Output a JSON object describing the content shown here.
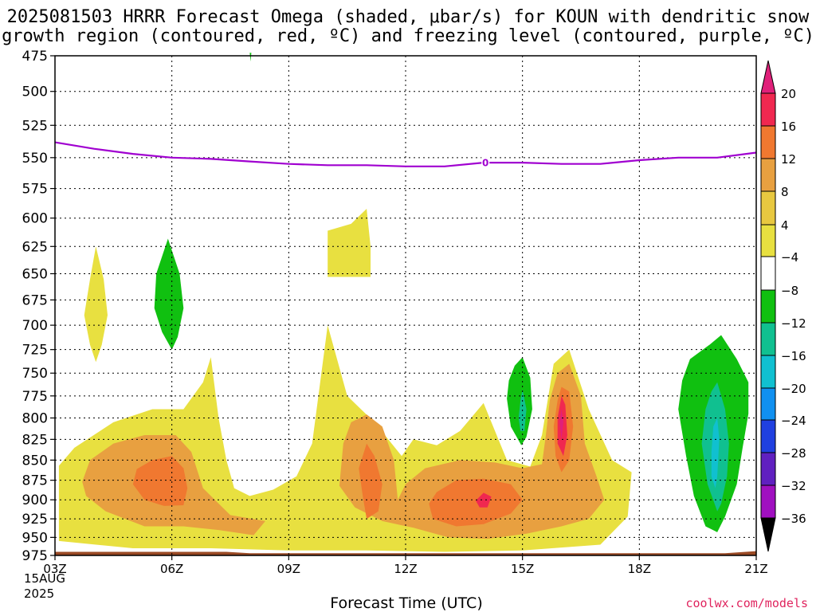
{
  "title": {
    "line1": "2025081503 HRRR Forecast Omega (shaded, μbar/s) for KOUN with dendritic snow",
    "line2": "growth region (contoured, red, ºC) and freezing level (contoured, purple, ºC)"
  },
  "start_date": {
    "line1": "15AUG",
    "line2": "2025"
  },
  "credit": "coolwx.com/models",
  "chart_data": {
    "type": "heatmap",
    "xlabel": "Forecast Time (UTC)",
    "ylabel": "",
    "x_ticks": [
      "03Z",
      "06Z",
      "09Z",
      "12Z",
      "15Z",
      "18Z",
      "21Z"
    ],
    "x_range": [
      3,
      21
    ],
    "y_ticks": [
      475,
      500,
      525,
      550,
      575,
      600,
      625,
      650,
      675,
      700,
      725,
      750,
      775,
      800,
      825,
      850,
      875,
      900,
      925,
      950,
      975
    ],
    "y_range_hPa": [
      475,
      975
    ],
    "grid": true,
    "colorbar": {
      "labels": [
        "20",
        "16",
        "12",
        "8",
        "4",
        "−4",
        "−8",
        "−12",
        "−16",
        "−20",
        "−24",
        "−28",
        "−32",
        "−36"
      ],
      "colors": [
        "#f02850",
        "#f07830",
        "#e8a040",
        "#e8c840",
        "#e8e040",
        "#ffffff",
        "#10c010",
        "#10c090",
        "#10c0d0",
        "#1090f0",
        "#2040e0",
        "#6020c0",
        "#a010c0",
        "#a0a0a0"
      ],
      "top_arrow_color": "#e0207a",
      "bottom_arrow_color": "#000000"
    },
    "freezing_level": {
      "label": "0",
      "color": "#a000d0",
      "points_time_hPa": [
        [
          3,
          538
        ],
        [
          4,
          543
        ],
        [
          5,
          547
        ],
        [
          6,
          550
        ],
        [
          7,
          551
        ],
        [
          8,
          553
        ],
        [
          9,
          555
        ],
        [
          10,
          556
        ],
        [
          11,
          556
        ],
        [
          12,
          557
        ],
        [
          13,
          557
        ],
        [
          14,
          554
        ],
        [
          15,
          554
        ],
        [
          16,
          555
        ],
        [
          17,
          555
        ],
        [
          18,
          552
        ],
        [
          19,
          550
        ],
        [
          20,
          550
        ],
        [
          21,
          546
        ]
      ]
    },
    "omega_regions": [
      {
        "value_range": "4 to 8",
        "color": "#e8e040",
        "points_time_hPa": [
          [
            3.1,
            857
          ],
          [
            3.5,
            835
          ],
          [
            4.5,
            805
          ],
          [
            5.5,
            790
          ],
          [
            6.3,
            790
          ],
          [
            6.8,
            760
          ],
          [
            7.0,
            733
          ],
          [
            7.2,
            800
          ],
          [
            7.4,
            850
          ],
          [
            7.6,
            885
          ],
          [
            8.0,
            895
          ],
          [
            8.6,
            887
          ],
          [
            9.2,
            870
          ],
          [
            9.6,
            830
          ],
          [
            10.0,
            700
          ],
          [
            10.5,
            775
          ],
          [
            11.2,
            805
          ],
          [
            11.9,
            845
          ],
          [
            12.2,
            825
          ],
          [
            12.8,
            832
          ],
          [
            13.4,
            815
          ],
          [
            14.0,
            783
          ],
          [
            14.6,
            850
          ],
          [
            15.2,
            858
          ],
          [
            15.5,
            820
          ],
          [
            15.8,
            740
          ],
          [
            16.2,
            725
          ],
          [
            16.7,
            790
          ],
          [
            17.3,
            850
          ],
          [
            17.8,
            865
          ],
          [
            17.7,
            922
          ],
          [
            17.0,
            960
          ],
          [
            15.0,
            968
          ],
          [
            13.0,
            970
          ],
          [
            11.0,
            968
          ],
          [
            9.0,
            968
          ],
          [
            7.0,
            965
          ],
          [
            5.0,
            965
          ],
          [
            3.1,
            955
          ]
        ]
      },
      {
        "value_range": "4 to 8",
        "color": "#e8e040",
        "points_time_hPa": [
          [
            3.9,
            720
          ],
          [
            3.75,
            690
          ],
          [
            3.9,
            655
          ],
          [
            4.05,
            625
          ],
          [
            4.25,
            655
          ],
          [
            4.35,
            690
          ],
          [
            4.2,
            720
          ],
          [
            4.05,
            738
          ]
        ]
      },
      {
        "value_range": "4 to 8",
        "color": "#e8e040",
        "points_time_hPa": [
          [
            10.0,
            611
          ],
          [
            10.6,
            605
          ],
          [
            11.0,
            592
          ],
          [
            11.1,
            625
          ],
          [
            11.1,
            653
          ],
          [
            10.0,
            653
          ]
        ]
      },
      {
        "value_range": "8 to 12",
        "color": "#e8a040",
        "points_time_hPa": [
          [
            3.7,
            877
          ],
          [
            3.9,
            850
          ],
          [
            4.5,
            830
          ],
          [
            5.3,
            820
          ],
          [
            6.1,
            820
          ],
          [
            6.5,
            840
          ],
          [
            6.8,
            885
          ],
          [
            7.5,
            920
          ],
          [
            8.4,
            928
          ],
          [
            8.1,
            947
          ],
          [
            7.2,
            940
          ],
          [
            6.3,
            935
          ],
          [
            5.3,
            935
          ],
          [
            4.3,
            915
          ],
          [
            3.8,
            895
          ]
        ]
      },
      {
        "value_range": "8 to 12",
        "color": "#e8a040",
        "points_time_hPa": [
          [
            10.3,
            882
          ],
          [
            10.4,
            830
          ],
          [
            10.6,
            805
          ],
          [
            11.0,
            796
          ],
          [
            11.4,
            810
          ],
          [
            11.7,
            850
          ],
          [
            11.8,
            900
          ],
          [
            12.0,
            880
          ],
          [
            12.5,
            860
          ],
          [
            13.4,
            850
          ],
          [
            14.3,
            853
          ],
          [
            15.0,
            860
          ],
          [
            15.5,
            855
          ],
          [
            15.6,
            820
          ],
          [
            15.7,
            780
          ],
          [
            15.9,
            750
          ],
          [
            16.2,
            740
          ],
          [
            16.5,
            775
          ],
          [
            16.6,
            830
          ],
          [
            16.9,
            870
          ],
          [
            17.1,
            900
          ],
          [
            16.7,
            925
          ],
          [
            16.0,
            935
          ],
          [
            15.1,
            945
          ],
          [
            14.1,
            952
          ],
          [
            13.1,
            950
          ],
          [
            12.2,
            937
          ],
          [
            11.4,
            928
          ],
          [
            10.7,
            910
          ]
        ]
      },
      {
        "value_range": "12 to 16",
        "color": "#f07830",
        "points_time_hPa": [
          [
            5.1,
            861
          ],
          [
            5.5,
            850
          ],
          [
            6.0,
            845
          ],
          [
            6.3,
            860
          ],
          [
            6.4,
            885
          ],
          [
            6.3,
            907
          ],
          [
            5.8,
            908
          ],
          [
            5.3,
            900
          ],
          [
            5.0,
            880
          ]
        ]
      },
      {
        "value_range": "12 to 16",
        "color": "#f07830",
        "points_time_hPa": [
          [
            10.8,
            860
          ],
          [
            11.0,
            830
          ],
          [
            11.2,
            845
          ],
          [
            11.4,
            880
          ],
          [
            11.3,
            915
          ],
          [
            11.0,
            925
          ],
          [
            10.9,
            895
          ]
        ]
      },
      {
        "value_range": "12 to 16",
        "color": "#f07830",
        "points_time_hPa": [
          [
            12.8,
            890
          ],
          [
            13.3,
            875
          ],
          [
            14.0,
            873
          ],
          [
            14.7,
            880
          ],
          [
            15.0,
            900
          ],
          [
            14.7,
            918
          ],
          [
            14.0,
            932
          ],
          [
            13.3,
            935
          ],
          [
            12.7,
            925
          ],
          [
            12.6,
            905
          ]
        ]
      },
      {
        "value_range": "12 to 16",
        "color": "#f07830",
        "points_time_hPa": [
          [
            15.8,
            810
          ],
          [
            15.9,
            780
          ],
          [
            16.0,
            765
          ],
          [
            16.2,
            770
          ],
          [
            16.3,
            810
          ],
          [
            16.2,
            850
          ],
          [
            16.0,
            865
          ],
          [
            15.85,
            845
          ]
        ]
      },
      {
        "value_range": "16 to 20",
        "color": "#f02850",
        "points_time_hPa": [
          [
            13.8,
            901
          ],
          [
            14.0,
            891
          ],
          [
            14.2,
            896
          ],
          [
            14.1,
            910
          ],
          [
            13.9,
            910
          ]
        ]
      },
      {
        "value_range": "16 to 20",
        "color": "#f02850",
        "points_time_hPa": [
          [
            15.9,
            800
          ],
          [
            16.0,
            775
          ],
          [
            16.1,
            785
          ],
          [
            16.15,
            820
          ],
          [
            16.05,
            845
          ],
          [
            15.9,
            830
          ]
        ]
      },
      {
        "value_range": ">20",
        "color": "#e0207a",
        "points_time_hPa": [
          [
            15.95,
            805
          ],
          [
            16.0,
            790
          ],
          [
            16.05,
            805
          ],
          [
            16.0,
            825
          ]
        ]
      },
      {
        "value_range": "-8 to -4",
        "color": "#10c010",
        "points_time_hPa": [
          [
            5.55,
            683
          ],
          [
            5.6,
            650
          ],
          [
            5.9,
            618
          ],
          [
            6.2,
            650
          ],
          [
            6.3,
            683
          ],
          [
            6.15,
            712
          ],
          [
            6.0,
            725
          ],
          [
            5.75,
            707
          ]
        ]
      },
      {
        "value_range": "-8 to -4",
        "color": "#10c010",
        "points_time_hPa": [
          [
            14.6,
            778
          ],
          [
            14.65,
            758
          ],
          [
            14.8,
            742
          ],
          [
            15.0,
            733
          ],
          [
            15.2,
            755
          ],
          [
            15.25,
            790
          ],
          [
            15.1,
            822
          ],
          [
            14.97,
            832
          ],
          [
            14.7,
            810
          ]
        ]
      },
      {
        "value_range": "-8 to -4",
        "color": "#10c010",
        "points_time_hPa": [
          [
            19.0,
            790
          ],
          [
            19.1,
            758
          ],
          [
            19.3,
            735
          ],
          [
            19.8,
            720
          ],
          [
            20.1,
            710
          ],
          [
            20.5,
            735
          ],
          [
            20.8,
            760
          ],
          [
            20.8,
            795
          ],
          [
            20.65,
            835
          ],
          [
            20.5,
            880
          ],
          [
            20.2,
            922
          ],
          [
            20.0,
            943
          ],
          [
            19.7,
            935
          ],
          [
            19.4,
            895
          ],
          [
            19.2,
            845
          ]
        ]
      },
      {
        "value_range": "-12 to -8",
        "color": "#10c090",
        "points_time_hPa": [
          [
            14.9,
            800
          ],
          [
            14.95,
            780
          ],
          [
            15.0,
            768
          ],
          [
            15.1,
            790
          ],
          [
            15.05,
            815
          ],
          [
            14.95,
            815
          ]
        ]
      },
      {
        "value_range": "-12 to -8",
        "color": "#10c090",
        "points_time_hPa": [
          [
            19.6,
            830
          ],
          [
            19.7,
            790
          ],
          [
            19.85,
            770
          ],
          [
            20.0,
            760
          ],
          [
            20.2,
            790
          ],
          [
            20.3,
            830
          ],
          [
            20.25,
            870
          ],
          [
            20.1,
            905
          ],
          [
            20.0,
            915
          ],
          [
            19.75,
            880
          ]
        ]
      },
      {
        "value_range": "-16 to -12",
        "color": "#10c0d0",
        "points_time_hPa": [
          [
            19.85,
            840
          ],
          [
            19.9,
            810
          ],
          [
            20.0,
            800
          ],
          [
            20.05,
            825
          ],
          [
            20.0,
            870
          ],
          [
            19.95,
            885
          ],
          [
            19.85,
            870
          ]
        ]
      },
      {
        "value_range": "marker",
        "color": "#10c010",
        "points_time_hPa": [
          [
            8.0,
            473
          ],
          [
            8.02,
            479
          ],
          [
            8.04,
            473
          ]
        ]
      }
    ],
    "surface": {
      "color": "#9a4a25",
      "points_time_hPa": [
        [
          3,
          970
        ],
        [
          7.4,
          970
        ],
        [
          8.0,
          972
        ],
        [
          20.2,
          972
        ],
        [
          21,
          969
        ]
      ]
    }
  }
}
